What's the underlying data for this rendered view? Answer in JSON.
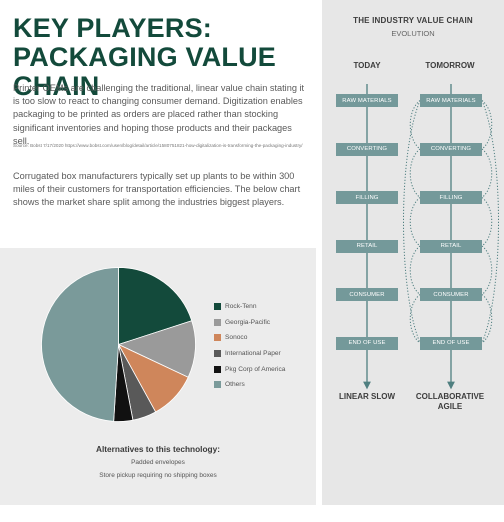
{
  "header": {
    "title_line1": "KEY PLAYERS:",
    "title_line2": "PACKAGING VALUE CHAIN"
  },
  "intro": "Printer OEMs are challenging the traditional, linear value chain stating it is too slow to react to changing consumer demand. Digitization enables packaging to be printed as orders are placed rather than stocking significant inventories and hoping those products and their packages sell.",
  "source": "Source: Bobst 7/17/2020 https://www.bobst.com/usen/blog/detail/article/1580751821-how-digitalization-is-transforming-the-packaging-industry/",
  "paragraph2": "Corrugated box manufacturers typically set up plants to be within 300 miles of their customers for transportation efficiencies. The below chart shows the market share split among the industries biggest players.",
  "chart_data": {
    "type": "pie",
    "title": "",
    "categories": [
      "Rock-Tenn",
      "Georgia-Pacific",
      "Sonoco",
      "International Paper",
      "Pkg Corp of America",
      "Others"
    ],
    "values": [
      20,
      12,
      10,
      5,
      4,
      49
    ],
    "colors": [
      "#134a3b",
      "#9a9a9a",
      "#cf865b",
      "#595959",
      "#111111",
      "#7a9a9a"
    ],
    "legend_position": "right"
  },
  "alternatives": {
    "title": "Alternatives to this technology:",
    "items": [
      "Padded envelopes",
      "Store pickup requiring no shipping boxes"
    ]
  },
  "value_chain": {
    "title": "THE INDUSTRY VALUE CHAIN",
    "subtitle": "EVOLUTION",
    "today_label": "TODAY",
    "tomorrow_label": "TOMORROW",
    "stages": [
      "RAW MATERIALS",
      "CONVERTING",
      "FILLING",
      "RETAIL",
      "CONSUMER",
      "END OF USE"
    ],
    "today_result": "LINEAR SLOW",
    "tomorrow_result_line1": "COLLABORATIVE",
    "tomorrow_result_line2": "AGILE",
    "stage_color": "#74999a",
    "line_color": "#4f7f80"
  }
}
